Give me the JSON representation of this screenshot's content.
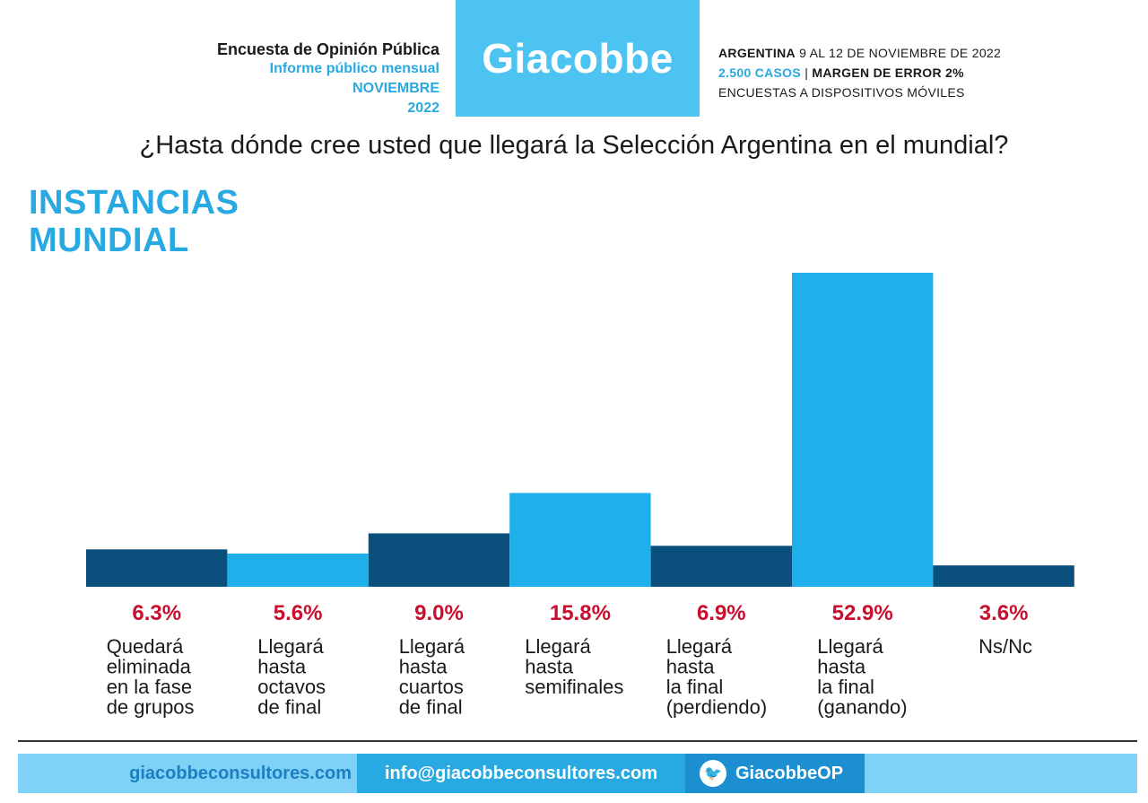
{
  "header": {
    "left": {
      "line1": "Encuesta de Opinión Pública",
      "line2": "Informe público mensual",
      "line3": "NOVIEMBRE",
      "line4": "2022"
    },
    "logo": "Giacobbe",
    "right": {
      "country": "ARGENTINA",
      "dates": "9 AL 12 DE NOVIEMBRE DE 2022",
      "cases": "2.500 CASOS",
      "separator": "|",
      "margin": "MARGEN DE ERROR 2%",
      "method": "ENCUESTAS A DISPOSITIVOS MÓVILES"
    }
  },
  "question": "¿Hasta dónde cree usted que llegará la Selección Argentina en el mundial?",
  "section_title": {
    "line1": "INSTANCIAS",
    "line2": "MUNDIAL"
  },
  "chart_data": {
    "type": "bar",
    "title": "",
    "xlabel": "",
    "ylabel": "",
    "ylim": [
      0,
      52.9
    ],
    "grid": false,
    "categories": [
      [
        "Quedará",
        "eliminada",
        "en la fase",
        "de grupos"
      ],
      [
        "Llegará",
        "hasta",
        "octavos",
        "de final"
      ],
      [
        "Llegará",
        "hasta",
        "cuartos",
        "de final"
      ],
      [
        "Llegará",
        "hasta",
        "semifinales"
      ],
      [
        "Llegará",
        "hasta",
        "la final",
        "(perdiendo)"
      ],
      [
        "Llegará",
        "hasta",
        "la final",
        "(ganando)"
      ],
      [
        "Ns/Nc"
      ]
    ],
    "values": [
      6.3,
      5.6,
      9.0,
      15.8,
      6.9,
      52.9,
      3.6
    ],
    "value_labels": [
      "6.3%",
      "5.6%",
      "9.0%",
      "15.8%",
      "6.9%",
      "52.9%",
      "3.6%"
    ],
    "colors": [
      "#0b4f7c",
      "#1fb0ec",
      "#0b4f7c",
      "#1fb0ec",
      "#0b4f7c",
      "#1fb0ec",
      "#0b4f7c"
    ],
    "label_color": "#c8102e"
  },
  "footer": {
    "website": "giacobbeconsultores.com",
    "email": "info@giacobbeconsultores.com",
    "twitter": "GiacobbeOP",
    "twitter_icon": "twitter-bird-icon"
  }
}
